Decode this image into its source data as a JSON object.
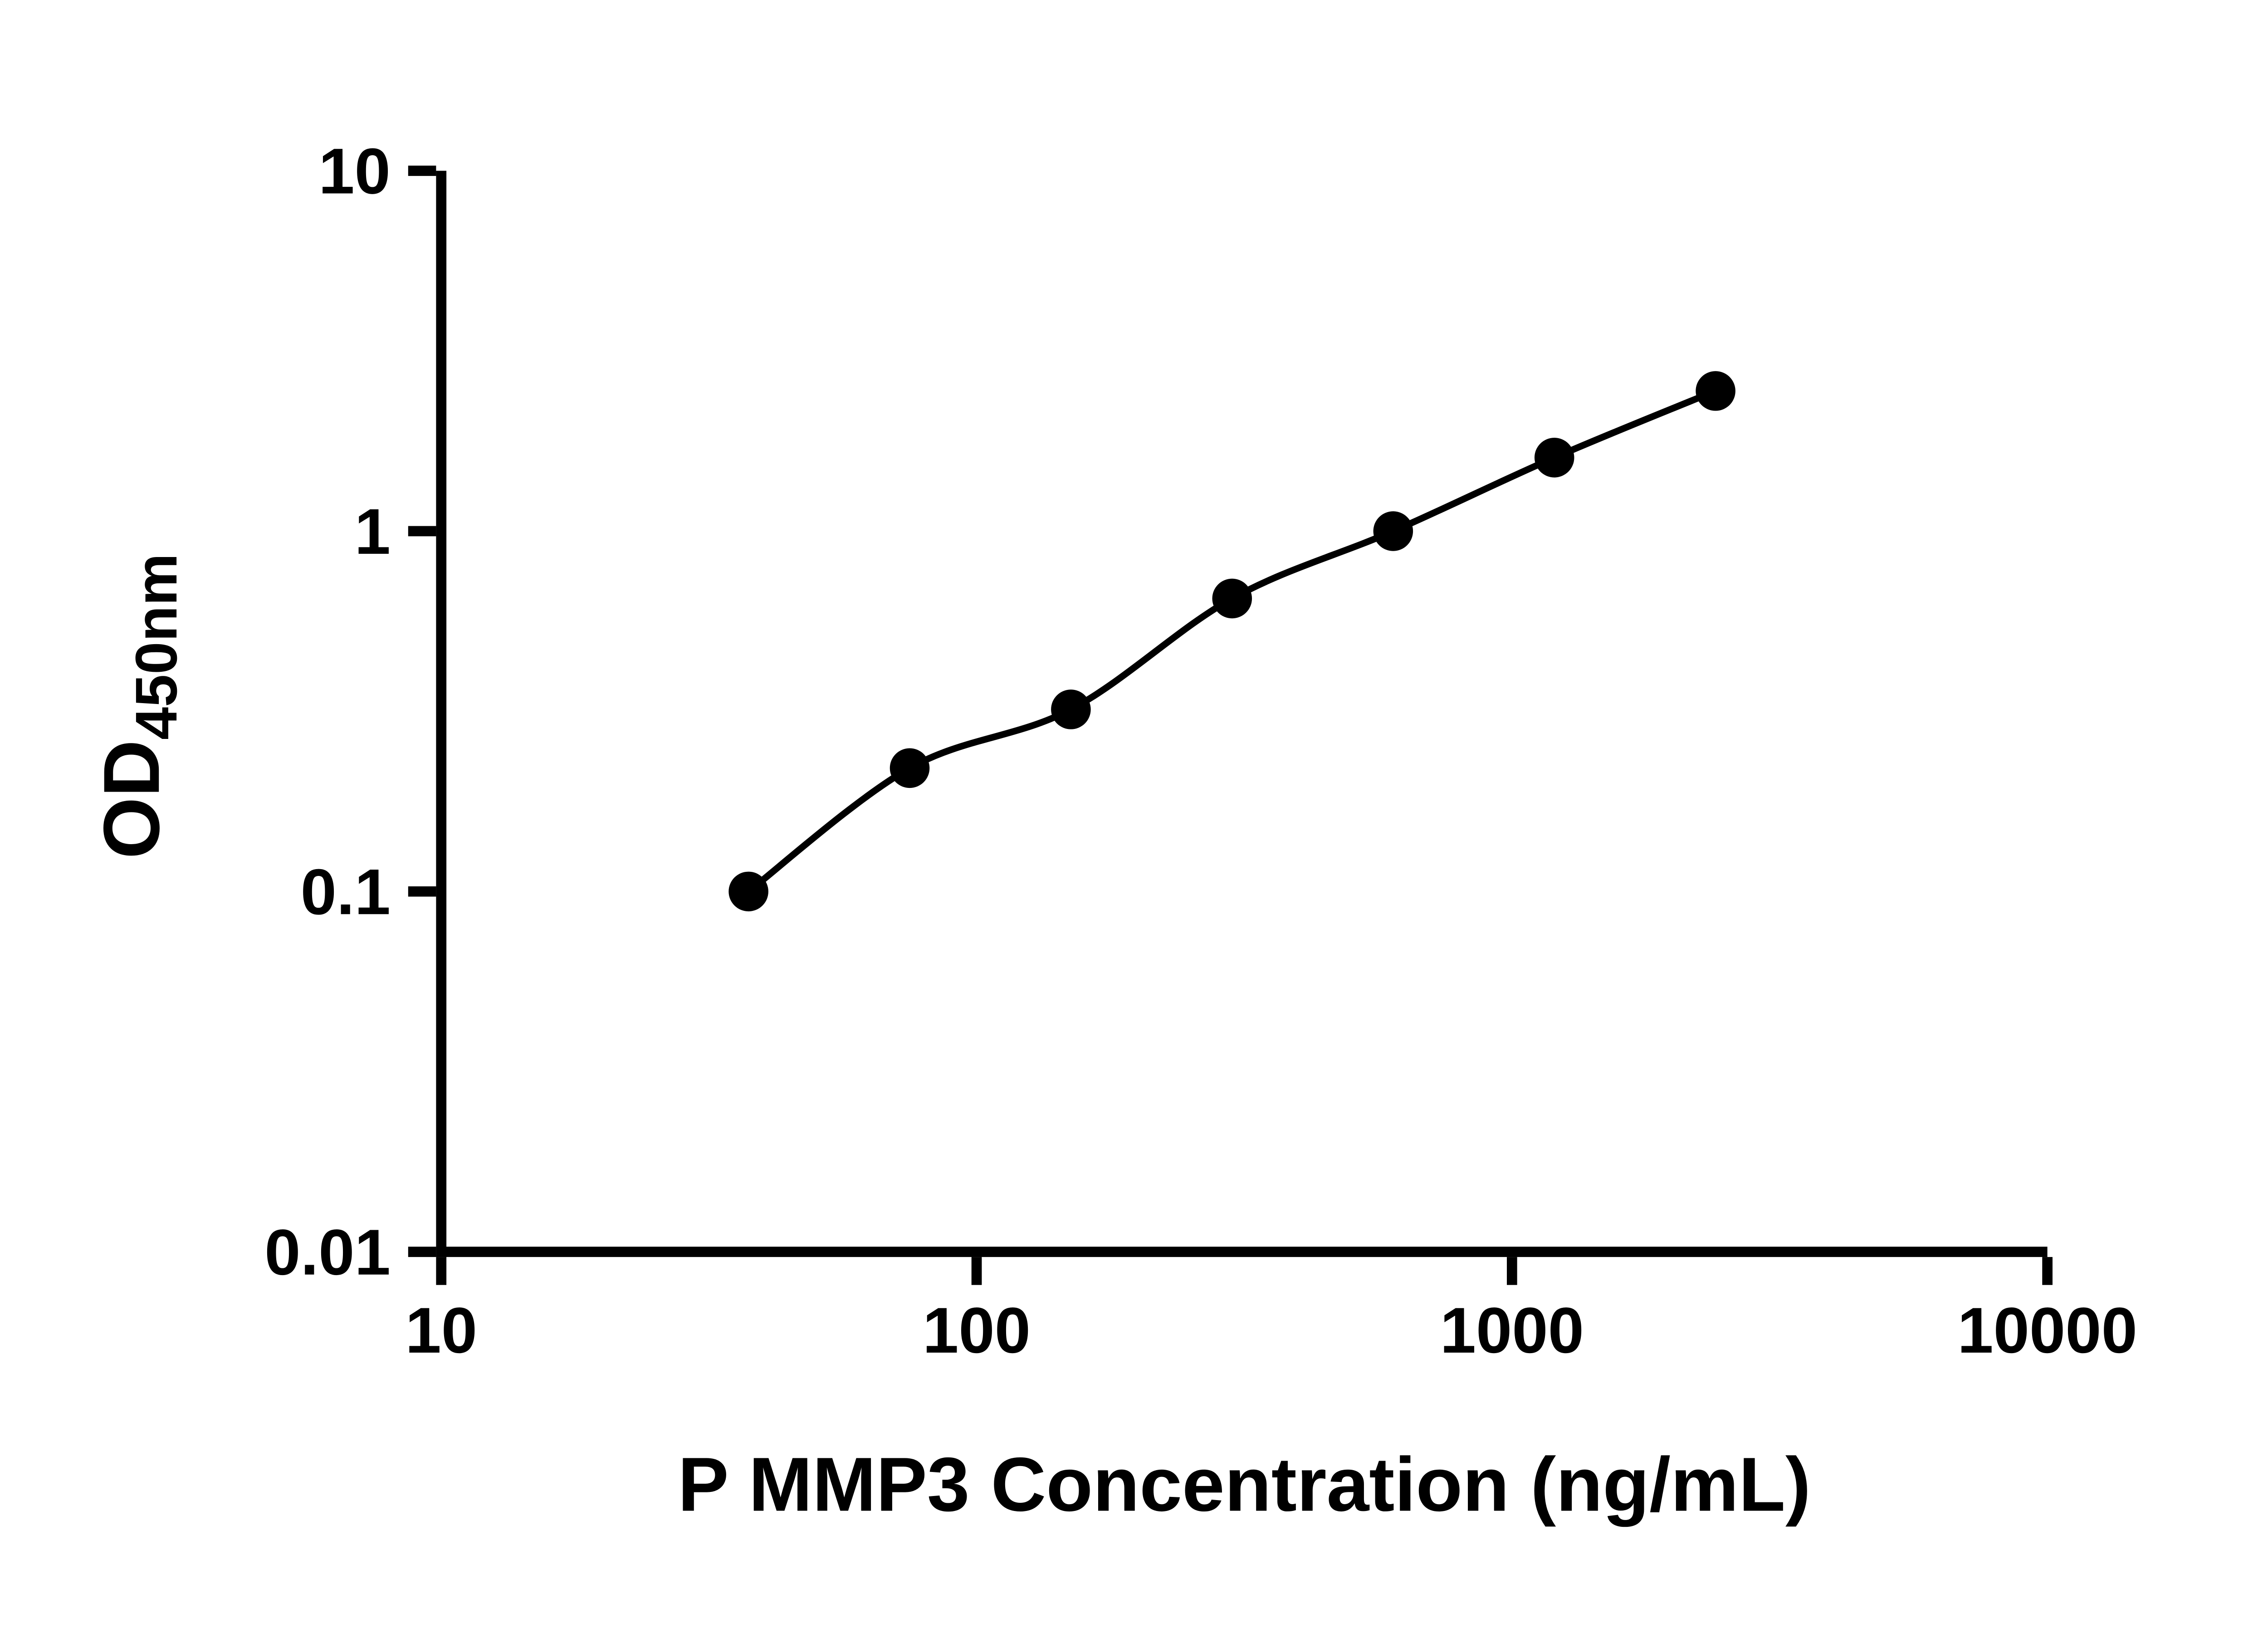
{
  "chart_data": {
    "type": "scatter",
    "title": "",
    "xlabel": "P MMP3 Concentration (ng/mL)",
    "ylabel_main": "OD",
    "ylabel_sub": "450nm",
    "x_scale": "log",
    "y_scale": "log",
    "xlim": [
      10,
      10000
    ],
    "ylim": [
      0.01,
      10
    ],
    "x_ticks": [
      10,
      100,
      1000,
      10000
    ],
    "x_tick_labels": [
      "10",
      "100",
      "1000",
      "10000"
    ],
    "y_ticks": [
      0.01,
      0.1,
      1,
      10
    ],
    "y_tick_labels": [
      "0.01",
      "0.1",
      "1",
      "10"
    ],
    "grid": false,
    "legend": "none",
    "marker_color": "#000000",
    "line_color": "#000000",
    "axis_color": "#000000",
    "background": "#ffffff",
    "fit": "smooth standard-curve fit through points",
    "points": [
      {
        "x": 37.5,
        "y": 0.1
      },
      {
        "x": 75,
        "y": 0.22
      },
      {
        "x": 150,
        "y": 0.32
      },
      {
        "x": 300,
        "y": 0.65
      },
      {
        "x": 600,
        "y": 1.0
      },
      {
        "x": 1200,
        "y": 1.6
      },
      {
        "x": 2400,
        "y": 2.45
      }
    ]
  }
}
